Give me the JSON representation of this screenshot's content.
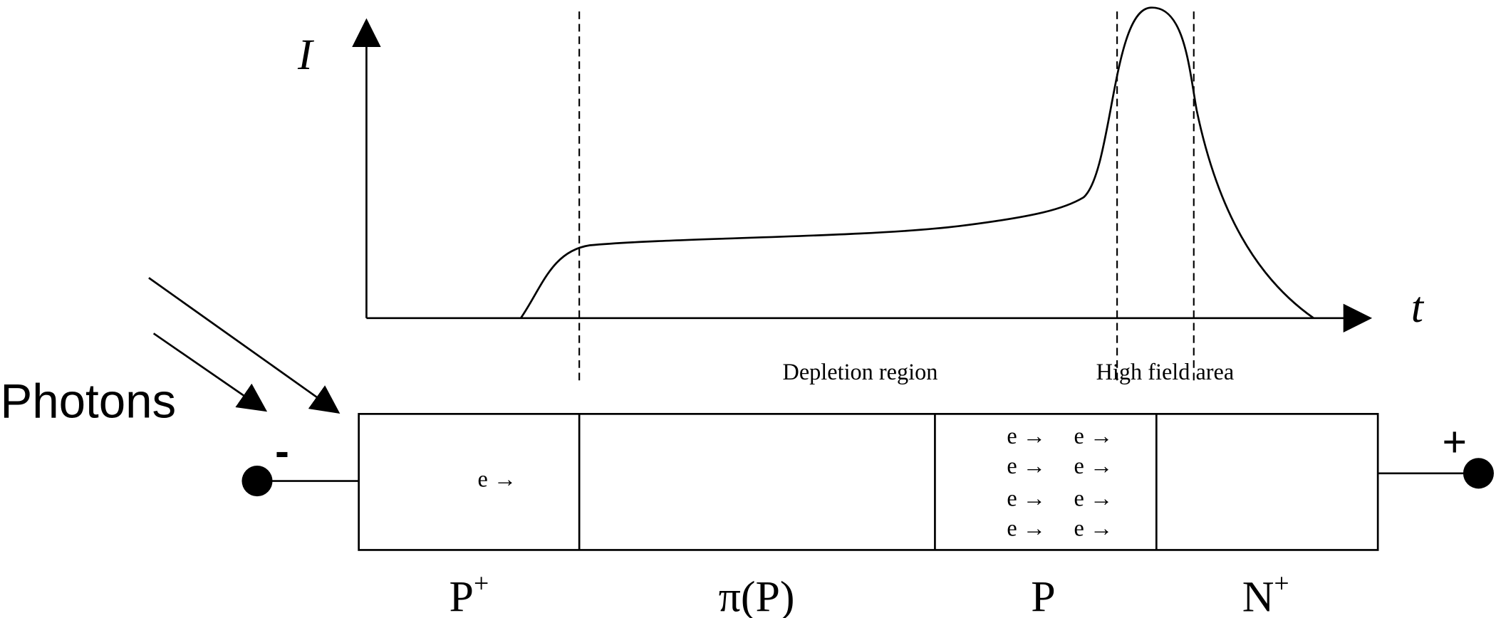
{
  "axes": {
    "y_label": "I",
    "x_label": "t"
  },
  "photons": "Photons",
  "terminals": {
    "negative": "-",
    "positive": "+"
  },
  "annotations": [
    "Depletion region",
    "High field area"
  ],
  "regions": [
    {
      "label": "P",
      "superscript": "+"
    },
    {
      "label": "π(P)"
    },
    {
      "label": "P"
    },
    {
      "label": "N",
      "superscript": "+"
    }
  ],
  "electrons": {
    "p_plus": [
      "e →"
    ],
    "p": [
      "e →",
      "e →",
      "e →",
      "e →",
      "e →",
      "e →",
      "e →",
      "e →"
    ]
  }
}
